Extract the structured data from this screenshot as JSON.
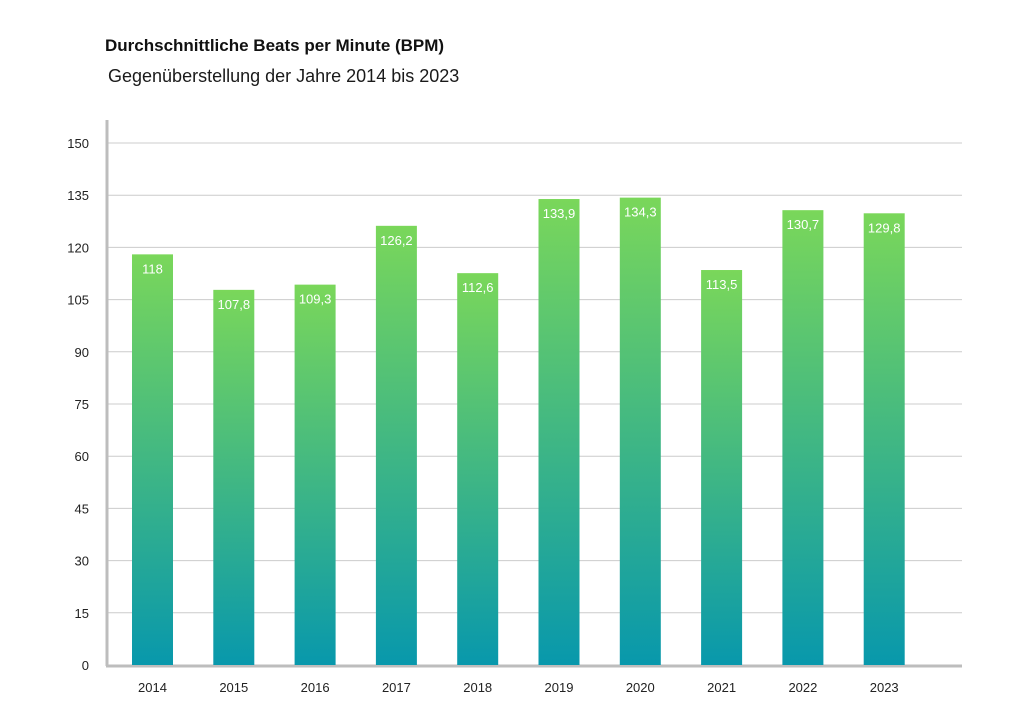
{
  "header": {
    "title": "Durchschnittliche Beats per Minute (BPM)",
    "subtitle": "Gegenüberstellung der Jahre 2014 bis 2023"
  },
  "colors": {
    "bar_top": "#7ad75a",
    "bar_bottom": "#0898ac",
    "grid": "#cccccc",
    "axis": "#bdbdbd",
    "value_label": "#ffffff",
    "tick_label": "#222222"
  },
  "chart_data": {
    "type": "bar",
    "categories": [
      "2014",
      "2015",
      "2016",
      "2017",
      "2018",
      "2019",
      "2020",
      "2021",
      "2022",
      "2023"
    ],
    "values": [
      118,
      107.8,
      109.3,
      126.2,
      112.6,
      133.9,
      134.3,
      113.5,
      130.7,
      129.8
    ],
    "value_labels": [
      "118",
      "107,8",
      "109,3",
      "126,2",
      "112,6",
      "133,9",
      "134,3",
      "113,5",
      "130,7",
      "129,8"
    ],
    "y_ticks": [
      "0",
      "15",
      "30",
      "45",
      "60",
      "75",
      "90",
      "105",
      "120",
      "135",
      "150"
    ],
    "ylim": [
      0,
      150
    ],
    "grid": true,
    "legend": "none",
    "title": "Durchschnittliche Beats per Minute (BPM)",
    "subtitle": "Gegenüberstellung der Jahre 2014 bis 2023"
  }
}
